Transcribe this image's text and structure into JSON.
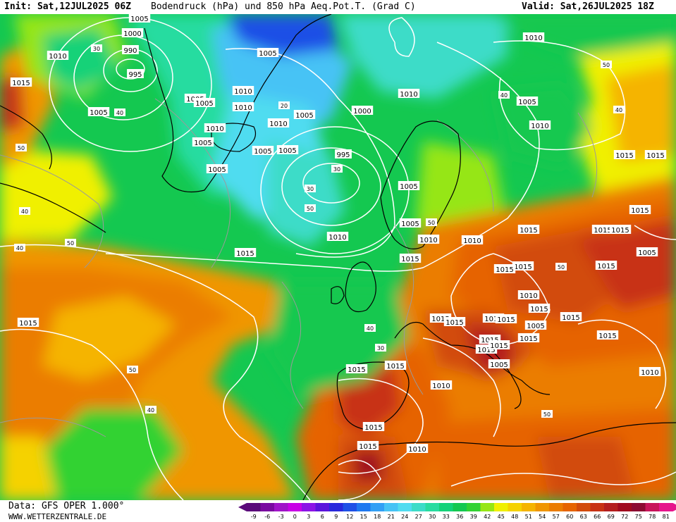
{
  "header": {
    "init": "Init: Sat,12JUL2025 06Z",
    "title": "Bodendruck (hPa) und 850 hPa Aeq.Pot.T. (Grad C)",
    "valid": "Valid: Sat,26JUL2025 18Z"
  },
  "footer": {
    "data": "Data: GFS OPER 1.000°",
    "site": "WWW.WETTERZENTRALE.DE"
  },
  "colors": {
    "c_m9": "#5a0a7a",
    "c_m6": "#7a0aa0",
    "c_m3": "#a014c8",
    "c_0": "#c800e6",
    "c_3": "#8c14e6",
    "c_6": "#5a14dc",
    "c_9": "#2828dc",
    "c_12": "#1e50e6",
    "c_15": "#1e78f0",
    "c_18": "#32a0f5",
    "c_21": "#46c3f5",
    "c_24": "#50dcf0",
    "c_27": "#3cdcc8",
    "c_30": "#28dca0",
    "c_33": "#14d278",
    "c_36": "#14c850",
    "c_39": "#32d232",
    "c_42": "#96e614",
    "c_45": "#f0f000",
    "c_48": "#f5d200",
    "c_51": "#f5b400",
    "c_54": "#f09600",
    "c_57": "#eb7d00",
    "c_60": "#e66400",
    "c_63": "#d24b0a",
    "c_66": "#c83214",
    "c_69": "#b41e1e",
    "c_72": "#a00a1e",
    "c_75": "#8c0a32",
    "c_78": "#c8145a",
    "c_81": "#e6148c"
  },
  "legend": {
    "ticks": [
      "-9",
      "-6",
      "-3",
      "0",
      "3",
      "6",
      "9",
      "12",
      "15",
      "18",
      "21",
      "24",
      "27",
      "30",
      "33",
      "36",
      "39",
      "42",
      "45",
      "48",
      "51",
      "54",
      "57",
      "60",
      "63",
      "66",
      "69",
      "72",
      "75",
      "78",
      "81"
    ]
  },
  "isobar_labels": [
    {
      "text": "1005"
    },
    {
      "text": "1000"
    },
    {
      "text": "990"
    },
    {
      "text": "995"
    },
    {
      "text": "1010"
    },
    {
      "text": "1015"
    },
    {
      "text": "1005"
    },
    {
      "text": "1005"
    },
    {
      "text": "1005"
    },
    {
      "text": "1010"
    },
    {
      "text": "1010"
    },
    {
      "text": "1010"
    },
    {
      "text": "1005"
    },
    {
      "text": "1005"
    },
    {
      "text": "1005"
    },
    {
      "text": "1010"
    },
    {
      "text": "1005"
    },
    {
      "text": "1005"
    },
    {
      "text": "1005"
    },
    {
      "text": "1000"
    },
    {
      "text": "995"
    },
    {
      "text": "1010"
    },
    {
      "text": "1010"
    },
    {
      "text": "1005"
    },
    {
      "text": "1010"
    },
    {
      "text": "1015"
    },
    {
      "text": "1015"
    },
    {
      "text": "1015"
    },
    {
      "text": "1005"
    },
    {
      "text": "1005"
    },
    {
      "text": "1015"
    },
    {
      "text": "1015"
    },
    {
      "text": "1015"
    },
    {
      "text": "1010"
    },
    {
      "text": "1010"
    },
    {
      "text": "1015"
    },
    {
      "text": "1015"
    },
    {
      "text": "1015"
    },
    {
      "text": "1015"
    },
    {
      "text": "1015"
    },
    {
      "text": "1005"
    },
    {
      "text": "1010"
    },
    {
      "text": "1015"
    },
    {
      "text": "1010"
    },
    {
      "text": "1015"
    },
    {
      "text": "1015"
    },
    {
      "text": "1015"
    },
    {
      "text": "1015"
    },
    {
      "text": "1015"
    },
    {
      "text": "1005"
    },
    {
      "text": "1015"
    },
    {
      "text": "1015"
    },
    {
      "text": "1015"
    },
    {
      "text": "1015"
    },
    {
      "text": "1015"
    },
    {
      "text": "1015"
    },
    {
      "text": "1015"
    },
    {
      "text": "1015"
    },
    {
      "text": "1010"
    },
    {
      "text": "1005"
    },
    {
      "text": "1010"
    },
    {
      "text": "1015"
    },
    {
      "text": "1015"
    },
    {
      "text": "1010"
    }
  ],
  "temp_labels": [
    "50",
    "40",
    "30",
    "20",
    "50",
    "40",
    "30",
    "50",
    "40",
    "30",
    "50",
    "40",
    "50",
    "40",
    "50",
    "40",
    "30",
    "50",
    "40",
    "50"
  ]
}
